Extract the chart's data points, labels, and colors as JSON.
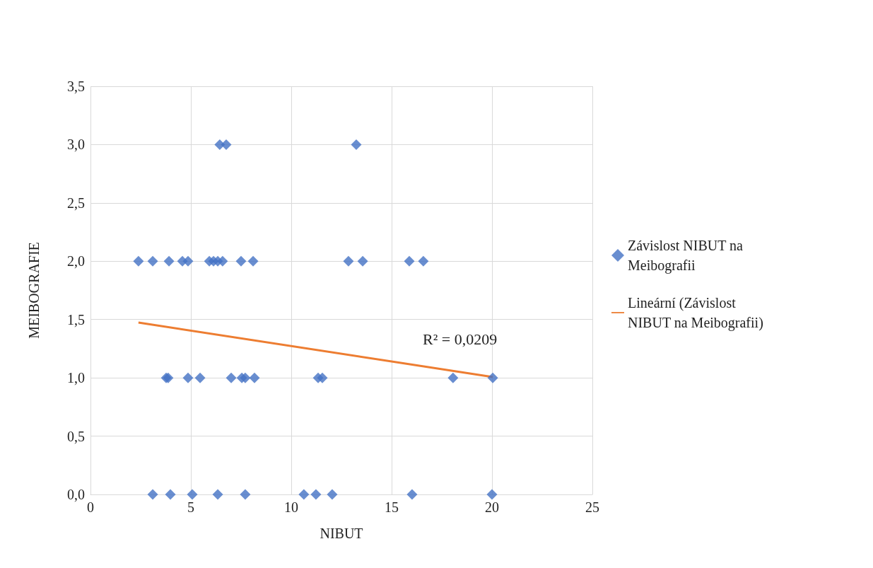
{
  "chart_data": {
    "type": "scatter",
    "xlabel": "NIBUT",
    "ylabel": "MEIBOGRAFIE",
    "xlim": [
      0,
      25
    ],
    "xticks": [
      0,
      5,
      10,
      15,
      20,
      25
    ],
    "ylim": [
      0,
      3.5
    ],
    "yticks": [
      {
        "value": 0,
        "label": "0,0"
      },
      {
        "value": 0.5,
        "label": "0,5"
      },
      {
        "value": 1,
        "label": "1,0"
      },
      {
        "value": 1.5,
        "label": "1,5"
      },
      {
        "value": 2,
        "label": "2,0"
      },
      {
        "value": 2.5,
        "label": "2,5"
      },
      {
        "value": 3,
        "label": "3,0"
      },
      {
        "value": 3.5,
        "label": "3,5"
      }
    ],
    "grid": true,
    "legend": "right",
    "marker": "diamond",
    "annotations": [
      "R² = 0,0209"
    ],
    "series": [
      {
        "name": "Závislost NIBUT na Meibografii",
        "color": "#4472c4",
        "x": [
          2.39,
          3.1,
          3.91,
          4.58,
          4.86,
          5.92,
          6.13,
          6.34,
          6.58,
          7.5,
          8.1,
          12.85,
          13.56,
          15.88,
          16.58,
          6.44,
          6.76,
          13.24,
          3.77,
          3.87,
          4.86,
          5.46,
          7.01,
          7.54,
          7.71,
          8.17,
          11.34,
          11.55,
          18.06,
          20.04,
          3.1,
          3.98,
          5.07,
          6.34,
          7.71,
          10.63,
          11.23,
          12.04,
          16.02,
          20.0
        ],
        "values": [
          2,
          2,
          2,
          2,
          2,
          2,
          2,
          2,
          2,
          2,
          2,
          2,
          2,
          2,
          2,
          3,
          3,
          3,
          1,
          1,
          1,
          1,
          1,
          1,
          1,
          1,
          1,
          1,
          1,
          1,
          0,
          0,
          0,
          0,
          0,
          0,
          0,
          0,
          0,
          0
        ]
      },
      {
        "name": "Lineární (Závislost NIBUT na Meibografii)",
        "color": "#ed7d31",
        "type": "line",
        "x": [
          2.39,
          20.04
        ],
        "values": [
          1.474,
          1.007
        ],
        "marker": "none"
      }
    ]
  }
}
